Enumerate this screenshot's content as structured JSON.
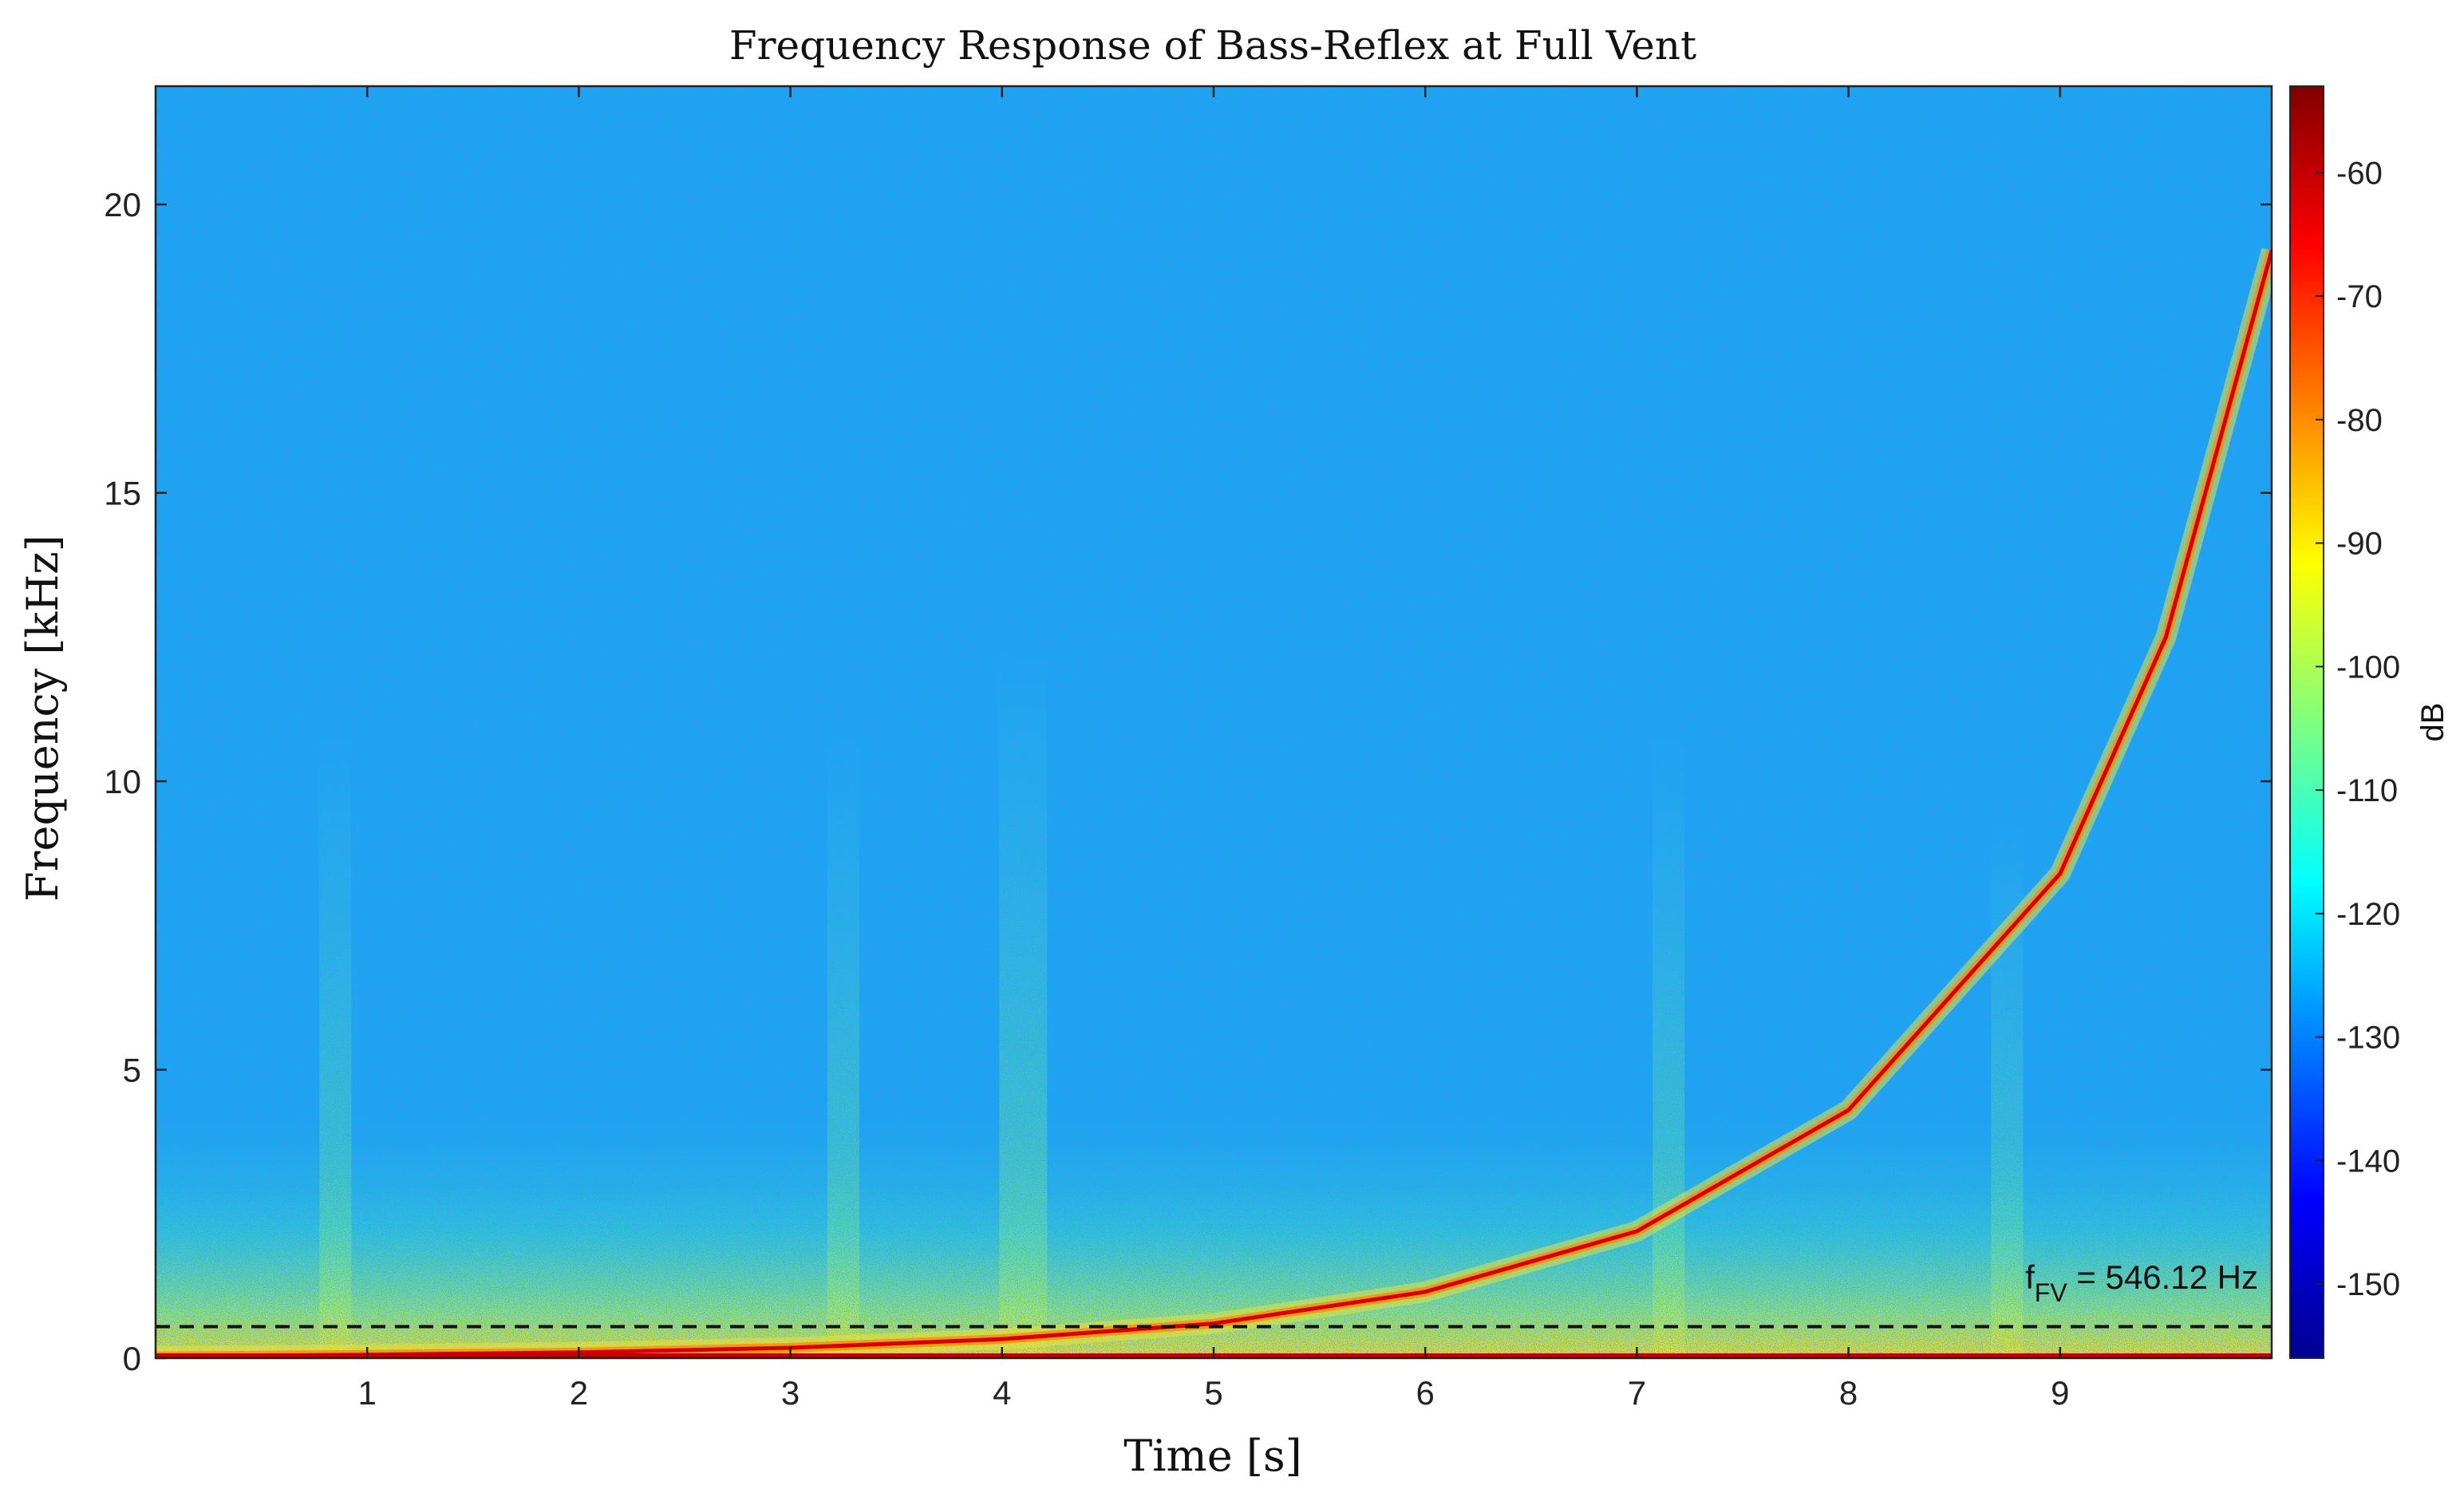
{
  "chart_data": {
    "type": "heatmap",
    "subtype": "spectrogram",
    "title": "Frequency Response of Bass-Reflex at Full Vent",
    "xlabel": "Time [s]",
    "ylabel": "Frequency [kHz]",
    "xlim": [
      0,
      10
    ],
    "ylim": [
      0,
      22.05
    ],
    "x_ticks": [
      1,
      2,
      3,
      4,
      5,
      6,
      7,
      8,
      9
    ],
    "x_tick_labels": [
      "1",
      "2",
      "3",
      "4",
      "5",
      "6",
      "7",
      "8",
      "9"
    ],
    "y_ticks": [
      0,
      5,
      10,
      15,
      20
    ],
    "y_tick_labels": [
      "0",
      "5",
      "10",
      "15",
      "20"
    ],
    "colormap": "jet",
    "colorbar": {
      "label": "dB",
      "range": [
        -156,
        -53
      ],
      "ticks": [
        -60,
        -70,
        -80,
        -90,
        -100,
        -110,
        -120,
        -130,
        -140,
        -150
      ],
      "tick_labels": [
        "-60",
        "-70",
        "-80",
        "-90",
        "-100",
        "-110",
        "-120",
        "-130",
        "-140",
        "-150"
      ],
      "position": "right"
    },
    "background_level_db": -125,
    "sweep": {
      "type": "exponential",
      "t": [
        0,
        1,
        2,
        3,
        4,
        5,
        6,
        7,
        8,
        9,
        9.5,
        10
      ],
      "f_khz": [
        0.03,
        0.06,
        0.1,
        0.18,
        0.33,
        0.6,
        1.15,
        2.2,
        4.3,
        8.4,
        12.5,
        19.2
      ],
      "peak_db": -55
    },
    "vertical_bursts_s": [
      0.85,
      3.25,
      4.1,
      7.15,
      8.75
    ],
    "reference_line": {
      "style": "dashed",
      "color": "#111111",
      "f_khz": 0.54612,
      "label_main": "f",
      "label_sub": "FV",
      "label_value": " = 546.12 Hz"
    },
    "grid": false,
    "legend": "none"
  }
}
